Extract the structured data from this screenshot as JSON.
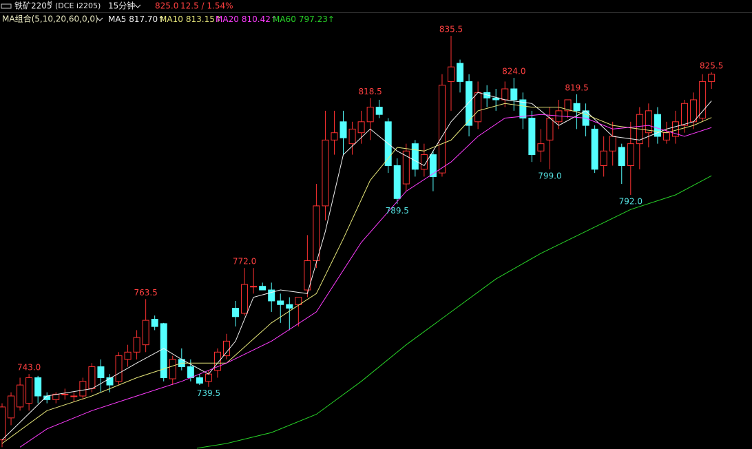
{
  "header": {
    "symbol": "铁矿2205",
    "symbol_sup": "M",
    "exchange": "(DCE i2205)",
    "period": "15分钟",
    "price": "825.0",
    "change": "12.5 / 1.54%"
  },
  "chart_data": {
    "type": "candlestick",
    "ylim": [
      722.5,
      845.3
    ],
    "up_color": "#ff3232",
    "down_color": "#54ffff",
    "open": [
      725,
      731,
      734,
      735,
      742,
      737,
      736,
      737.5,
      737,
      737,
      739,
      745,
      742,
      741,
      747,
      749,
      751,
      758,
      756.8,
      741.7,
      747,
      745,
      742,
      741,
      744,
      748,
      761,
      759.6,
      767,
      767,
      766,
      763,
      762,
      762,
      766,
      774,
      789,
      807,
      812,
      806,
      809,
      812,
      816,
      812,
      800,
      795,
      806,
      799,
      803,
      798,
      823,
      828,
      823,
      812,
      820,
      818.5,
      818,
      821,
      818,
      813,
      804,
      807,
      812,
      815,
      817,
      815,
      810,
      800,
      804,
      805,
      800,
      806,
      809,
      814,
      807,
      808,
      811,
      812,
      813,
      823
    ],
    "high": [
      735,
      738,
      742,
      743,
      742.5,
      738,
      738,
      739,
      738,
      742,
      746,
      747,
      743,
      749,
      751,
      755,
      763.5,
      759,
      757,
      748,
      750,
      747,
      743,
      744,
      750,
      754,
      763,
      772,
      772,
      768,
      768,
      765,
      764,
      764,
      781,
      795,
      815,
      815,
      815,
      812,
      815,
      818.5,
      818,
      813,
      802,
      806,
      807,
      806,
      804,
      825,
      835.5,
      829,
      825,
      823,
      822,
      821,
      823,
      824,
      820,
      815,
      810,
      816,
      818,
      818,
      819.5,
      817,
      811,
      808,
      812,
      806,
      812,
      816,
      817,
      816,
      812,
      815,
      818,
      820,
      825,
      825.5
    ],
    "low": [
      723,
      729,
      733,
      733,
      735,
      735,
      735,
      736,
      735.5,
      736,
      738,
      738,
      738,
      740,
      745,
      747,
      749,
      755,
      741,
      740,
      744,
      741,
      740,
      739.5,
      742,
      747,
      756,
      759,
      765,
      766,
      760,
      757,
      755,
      756,
      764,
      772,
      785,
      803,
      803,
      803,
      806,
      807,
      813,
      798,
      789.5,
      793,
      797,
      797,
      793,
      797,
      815,
      820,
      808,
      810,
      816,
      815,
      816,
      815,
      810,
      801,
      801,
      799,
      810,
      813,
      810,
      808,
      798,
      797,
      800,
      795,
      792,
      799,
      805,
      806,
      806,
      806,
      809,
      810,
      812,
      821
    ],
    "close": [
      734,
      737,
      740,
      742,
      737,
      736,
      737.5,
      737.5,
      737,
      741,
      745,
      742,
      740,
      748,
      749,
      753,
      757.7,
      756,
      742,
      747,
      745,
      742,
      740.5,
      743,
      749,
      752,
      758.7,
      767.5,
      767,
      766,
      763,
      762,
      761,
      764,
      774,
      789,
      807,
      809,
      807.6,
      810,
      812,
      816,
      814,
      800,
      791,
      804,
      799,
      803,
      797,
      822,
      827,
      823,
      811,
      820,
      818.5,
      818,
      821,
      818,
      813,
      803,
      806,
      813,
      815,
      818,
      815,
      811,
      799,
      804,
      808,
      800,
      806,
      814,
      815,
      808,
      809,
      812,
      817,
      818,
      823,
      825
    ],
    "annotations": [
      {
        "index": 3,
        "kind": "high",
        "label": "743.0"
      },
      {
        "index": 16,
        "kind": "high",
        "label": "763.5"
      },
      {
        "index": 23,
        "kind": "low",
        "label": "739.5"
      },
      {
        "index": 27,
        "kind": "high",
        "label": "772.0"
      },
      {
        "index": 41,
        "kind": "high",
        "label": "818.5"
      },
      {
        "index": 44,
        "kind": "low",
        "label": "789.5"
      },
      {
        "index": 50,
        "kind": "high",
        "label": "835.5"
      },
      {
        "index": 57,
        "kind": "high",
        "label": "824.0"
      },
      {
        "index": 61,
        "kind": "low",
        "label": "799.0"
      },
      {
        "index": 64,
        "kind": "high",
        "label": "819.5"
      },
      {
        "index": 70,
        "kind": "low",
        "label": "792.0"
      },
      {
        "index": 79,
        "kind": "high",
        "label": "825.5"
      }
    ],
    "ma_group": "MA组合(5,10,20,60,0,0)",
    "series": [
      {
        "name": "MA5",
        "last_label": "817.70↑",
        "color": "#f0f0f0",
        "x": [
          0,
          5,
          10,
          15,
          18,
          20,
          23,
          26,
          28,
          31,
          34,
          36,
          38,
          41,
          44,
          47,
          50,
          53,
          56,
          59,
          62,
          65,
          68,
          71,
          74,
          77,
          79
        ],
        "values": [
          725,
          737,
          739,
          746,
          750,
          747,
          743,
          752,
          764,
          766,
          765,
          782,
          803,
          810,
          804,
          800,
          812,
          820,
          818,
          817,
          811,
          815,
          808,
          807,
          810,
          812,
          817.7
        ]
      },
      {
        "name": "MA10",
        "last_label": "813.15↑",
        "color": "#e6e67a",
        "x": [
          0,
          5,
          10,
          15,
          20,
          25,
          30,
          35,
          38,
          41,
          44,
          47,
          50,
          53,
          56,
          59,
          62,
          65,
          68,
          71,
          74,
          77,
          79
        ],
        "values": [
          724,
          733,
          737,
          742,
          746,
          746,
          757,
          765,
          780,
          796,
          805,
          804,
          807,
          815,
          817,
          816,
          816,
          814,
          811,
          810,
          809,
          811,
          813.15
        ]
      },
      {
        "name": "MA20",
        "last_label": "810.42↑",
        "color": "#ff3cff",
        "x": [
          2,
          5,
          10,
          15,
          20,
          25,
          30,
          35,
          40,
          45,
          50,
          53,
          56,
          60,
          65,
          68,
          72,
          76,
          79
        ],
        "values": [
          723,
          728,
          733,
          737,
          741,
          746,
          752,
          760,
          779,
          793,
          801,
          808,
          813,
          814,
          813,
          810,
          811,
          808,
          810.42
        ]
      },
      {
        "name": "MA60",
        "last_label": "797.23↑",
        "color": "#28d428",
        "x": [
          21.7,
          25,
          30,
          35,
          40,
          45,
          50,
          55,
          60,
          65,
          70,
          75,
          79
        ],
        "values": [
          722.7,
          724,
          727,
          732,
          741,
          751,
          760,
          769,
          776,
          782,
          788,
          792,
          797.23
        ]
      }
    ]
  }
}
